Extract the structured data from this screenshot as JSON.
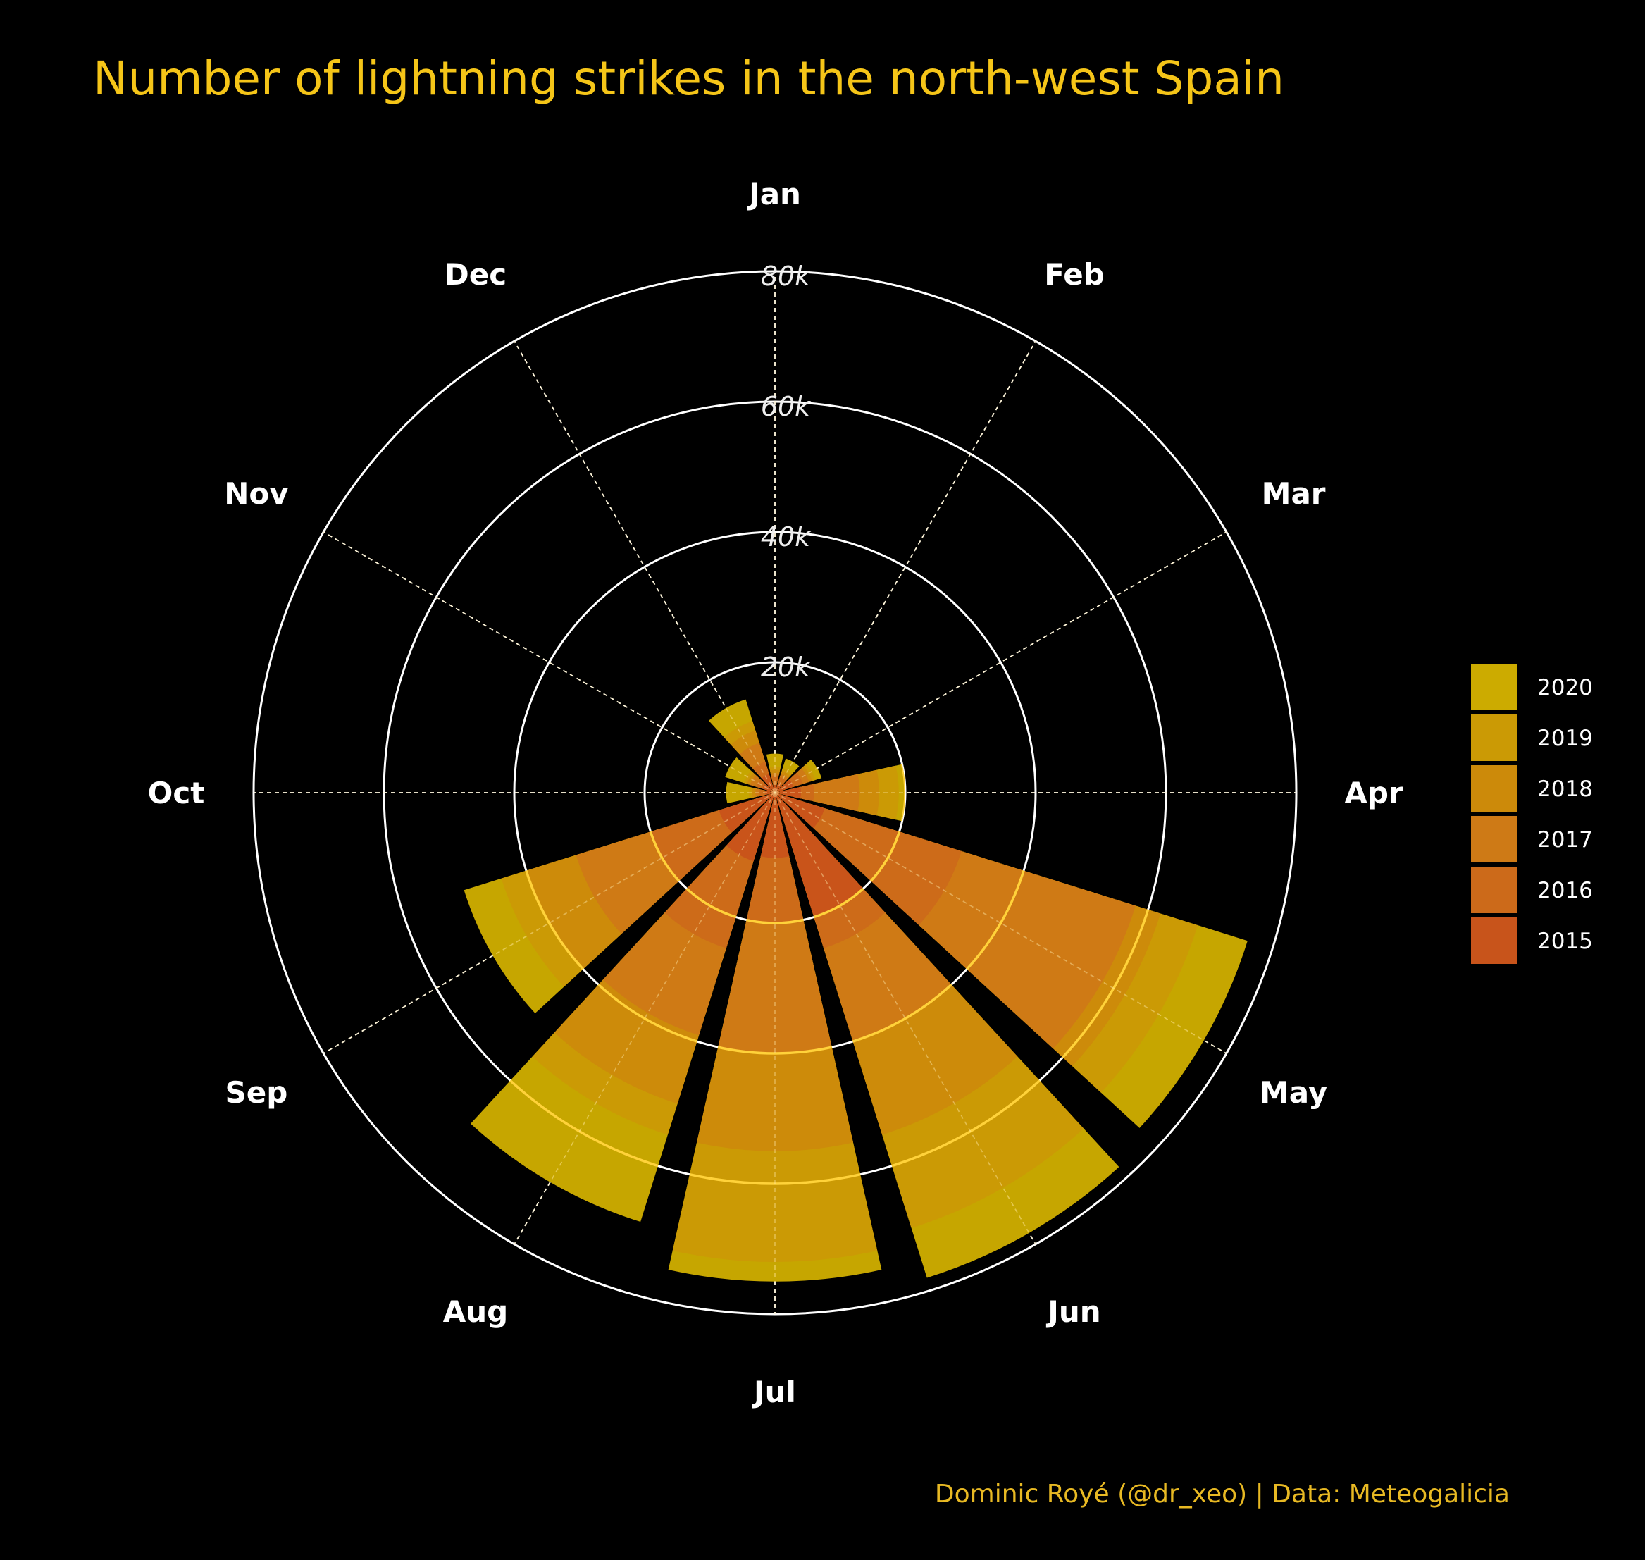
{
  "title": "Number of lightning strikes in the north-west Spain",
  "caption": "Dominic Royé (@dr_xeo) | Data: Meteogalicia",
  "chart_data": {
    "type": "bar",
    "coordinate_system": "polar",
    "stacking": "overlaid (each year drawn from center; later years drawn on top)",
    "categories": [
      "Jan",
      "Feb",
      "Mar",
      "Apr",
      "May",
      "Jun",
      "Jul",
      "Aug",
      "Sep",
      "Oct",
      "Nov",
      "Dec"
    ],
    "radial_axis": {
      "ticks": [
        20000,
        40000,
        60000,
        80000
      ],
      "tick_labels": [
        "20k",
        "40k",
        "60k",
        "80k"
      ],
      "range": [
        0,
        80000
      ]
    },
    "series": [
      {
        "name": "2015",
        "color": "#c8541b",
        "values": [
          1200,
          1500,
          3000,
          4000,
          8000,
          20000,
          10000,
          11000,
          9000,
          1500,
          2000,
          3000
        ]
      },
      {
        "name": "2016",
        "color": "#cc6a1a",
        "values": [
          2500,
          2500,
          4500,
          6000,
          30000,
          25000,
          20000,
          25000,
          20000,
          2500,
          3000,
          5000
        ]
      },
      {
        "name": "2017",
        "color": "#ce7a16",
        "values": [
          3000,
          3000,
          5500,
          13000,
          58000,
          40000,
          40000,
          39000,
          32000,
          3000,
          4000,
          8000
        ]
      },
      {
        "name": "2018",
        "color": "#cc8a0a",
        "values": [
          3500,
          3500,
          6000,
          16000,
          62000,
          55000,
          55000,
          50000,
          40000,
          3500,
          4500,
          10000
        ]
      },
      {
        "name": "2019",
        "color": "#cb9a05",
        "values": [
          4000,
          4000,
          6500,
          19000,
          68000,
          70000,
          72000,
          55000,
          44000,
          4000,
          5000,
          11500
        ]
      },
      {
        "name": "2020",
        "color": "#ccab00",
        "values": [
          6000,
          5500,
          7500,
          20000,
          76000,
          78000,
          75000,
          69000,
          50000,
          7500,
          8000,
          15000
        ]
      }
    ],
    "legend": {
      "position": "right",
      "order": [
        "2020",
        "2019",
        "2018",
        "2017",
        "2016",
        "2015"
      ]
    },
    "grid": true
  }
}
